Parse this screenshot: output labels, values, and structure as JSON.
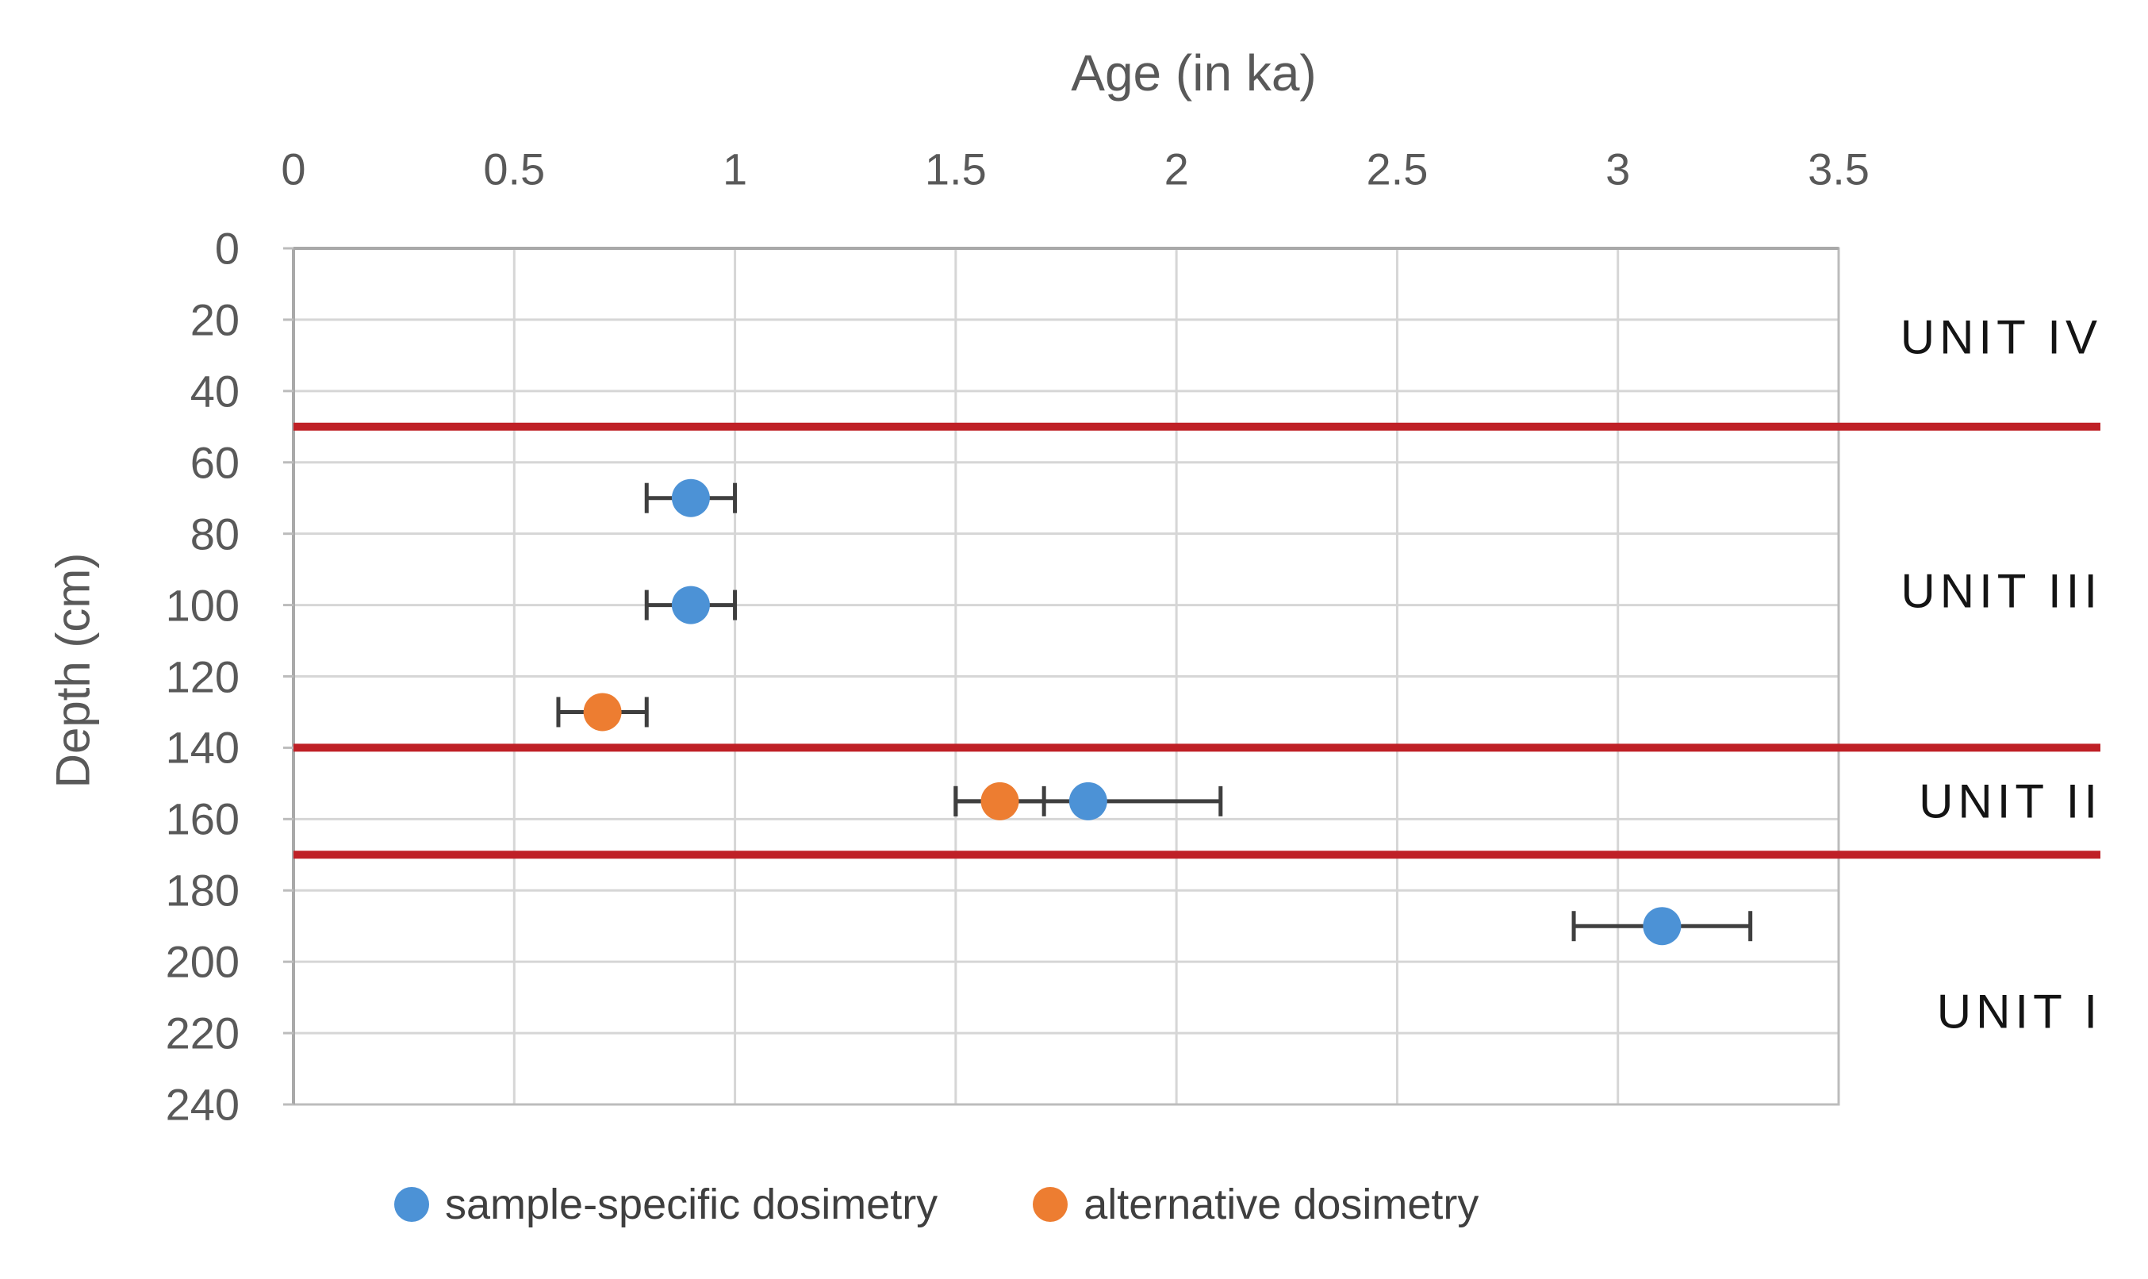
{
  "chart_data": {
    "type": "scatter",
    "title": "Age (in ka)",
    "xlabel": "Age (in ka)",
    "ylabel": "Depth  (cm)",
    "xlim": [
      0,
      3.5
    ],
    "ylim": [
      0,
      240
    ],
    "x_ticks": [
      0,
      0.5,
      1,
      1.5,
      2,
      2.5,
      3,
      3.5
    ],
    "y_ticks": [
      0,
      20,
      40,
      60,
      80,
      100,
      120,
      140,
      160,
      180,
      200,
      220,
      240
    ],
    "grid": true,
    "legend_position": "bottom",
    "colors": {
      "grid": "#d6d6d6",
      "border": "#bcbcbc",
      "axis": "#a9a9a9",
      "error_bar": "#3f3f3f",
      "unit_boundary": "#bf2026",
      "tick_text": "#595959",
      "unit_text": "#141414"
    },
    "series": [
      {
        "name": "sample-specific dosimetry",
        "color": "#4c92d6",
        "points": [
          {
            "age": 0.9,
            "depth": 70,
            "err": 0.1
          },
          {
            "age": 0.9,
            "depth": 100,
            "err": 0.1
          },
          {
            "age": 1.8,
            "depth": 155,
            "err": 0.3
          },
          {
            "age": 3.1,
            "depth": 190,
            "err": 0.2
          }
        ]
      },
      {
        "name": "alternative dosimetry",
        "color": "#ed7d31",
        "points": [
          {
            "age": 0.7,
            "depth": 130,
            "err": 0.1
          },
          {
            "age": 1.6,
            "depth": 155,
            "err": 0.1
          }
        ]
      }
    ],
    "unit_boundaries_depth": [
      50,
      140,
      170
    ],
    "unit_labels": [
      {
        "label": "UNIT IV",
        "depth": 25
      },
      {
        "label": "UNIT III",
        "depth": 96
      },
      {
        "label": "UNIT II",
        "depth": 155
      },
      {
        "label": "UNIT I",
        "depth": 214
      }
    ]
  }
}
